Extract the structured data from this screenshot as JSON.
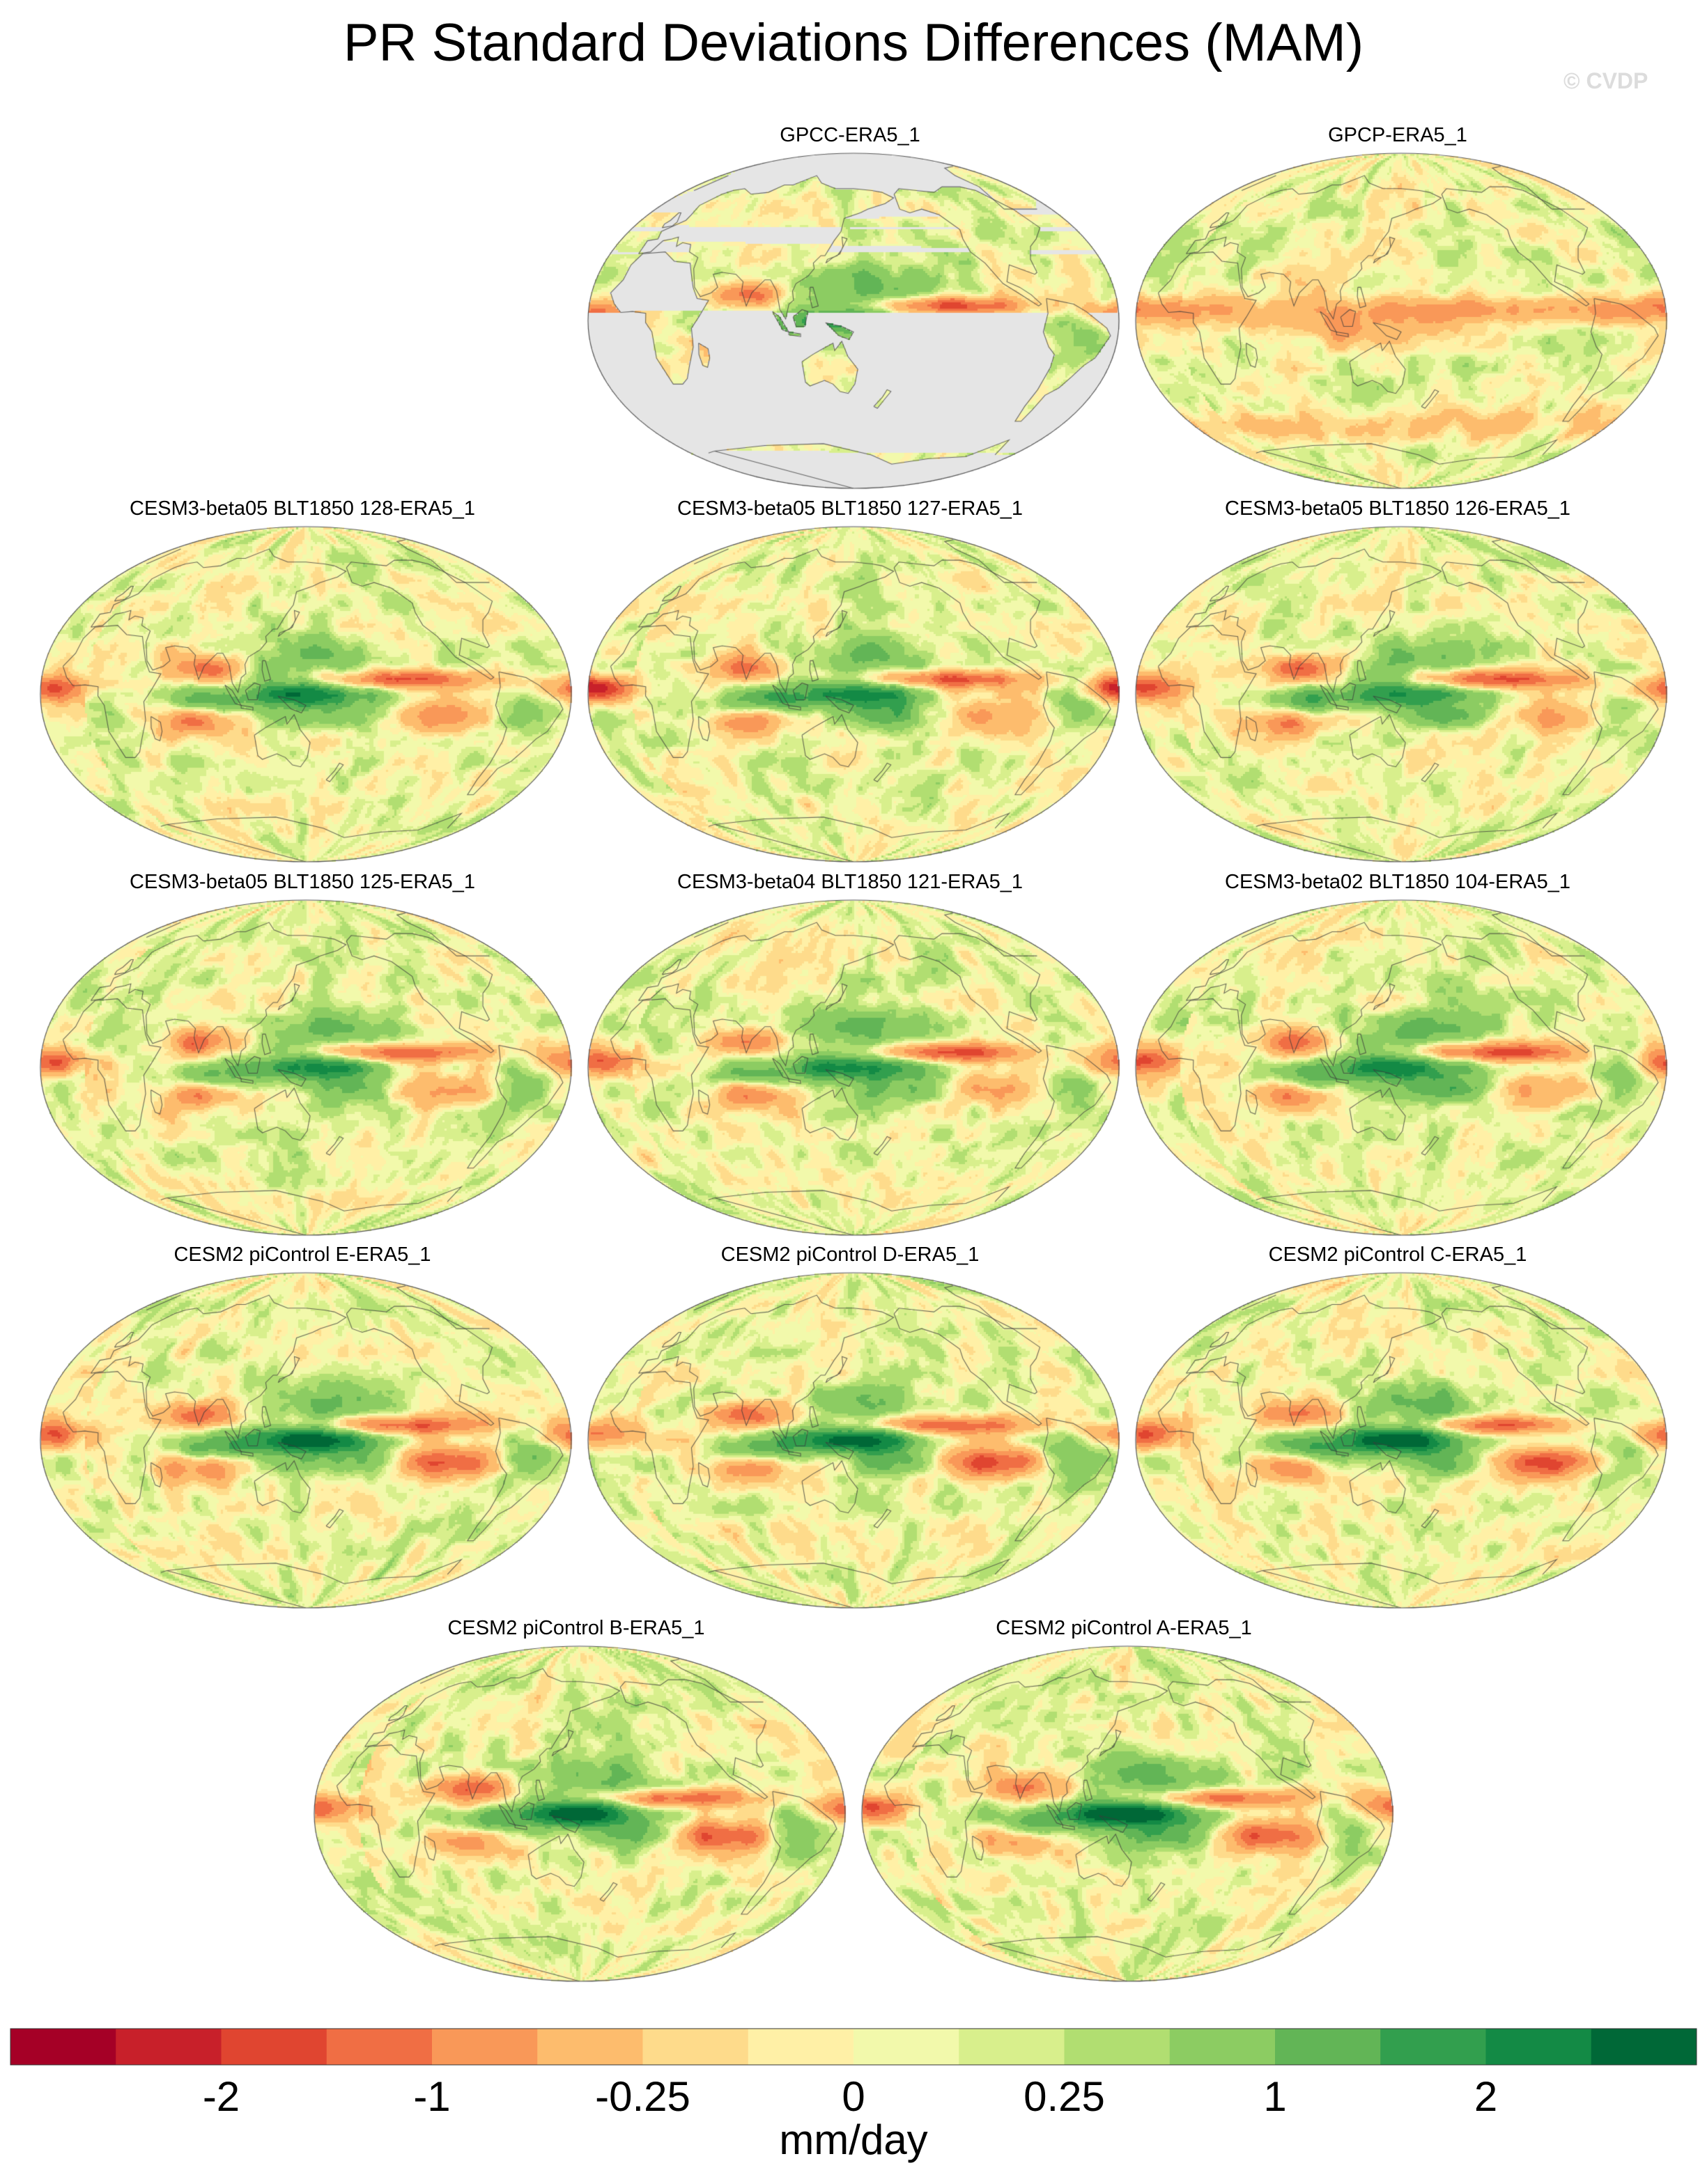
{
  "title": "PR Standard Deviations Differences (MAM)",
  "watermark": "© CVDP",
  "chart_data": {
    "type": "heatmap",
    "title": "PR Standard Deviations Differences (MAM)",
    "projection": "Robinson (Pacific-centered)",
    "panels": [
      {
        "label": "GPCC-ERA5_1",
        "land_only": true,
        "variant": 0
      },
      {
        "label": "GPCP-ERA5_1",
        "land_only": false,
        "variant": 1
      },
      {
        "label": "CESM3-beta05 BLT1850 128-ERA5_1",
        "land_only": false,
        "variant": 2
      },
      {
        "label": "CESM3-beta05 BLT1850 127-ERA5_1",
        "land_only": false,
        "variant": 3
      },
      {
        "label": "CESM3-beta05 BLT1850 126-ERA5_1",
        "land_only": false,
        "variant": 4
      },
      {
        "label": "CESM3-beta05 BLT1850 125-ERA5_1",
        "land_only": false,
        "variant": 5
      },
      {
        "label": "CESM3-beta04 BLT1850 121-ERA5_1",
        "land_only": false,
        "variant": 6
      },
      {
        "label": "CESM3-beta02 BLT1850 104-ERA5_1",
        "land_only": false,
        "variant": 7
      },
      {
        "label": "CESM2 piControl E-ERA5_1",
        "land_only": false,
        "variant": 8
      },
      {
        "label": "CESM2 piControl D-ERA5_1",
        "land_only": false,
        "variant": 9
      },
      {
        "label": "CESM2 piControl C-ERA5_1",
        "land_only": false,
        "variant": 10
      },
      {
        "label": "CESM2 piControl B-ERA5_1",
        "land_only": false,
        "variant": 11
      },
      {
        "label": "CESM2 piControl A-ERA5_1",
        "land_only": false,
        "variant": 12
      }
    ],
    "colorbar": {
      "label": "mm/day",
      "tick_labels": [
        "-2",
        "-1",
        "-0.25",
        "0",
        "0.25",
        "1",
        "2"
      ],
      "tick_box_index": [
        2,
        4,
        6,
        8,
        10,
        12,
        14
      ],
      "colors": [
        "#a50026",
        "#c8202a",
        "#e04530",
        "#f06e44",
        "#f99858",
        "#fdbc6d",
        "#fedb8b",
        "#fff0a6",
        "#f2f9ab",
        "#d8ef8c",
        "#b1de71",
        "#8ccc62",
        "#62b556",
        "#329f4e",
        "#138a45",
        "#006837"
      ]
    },
    "missing_color": "#e5e5e5"
  }
}
